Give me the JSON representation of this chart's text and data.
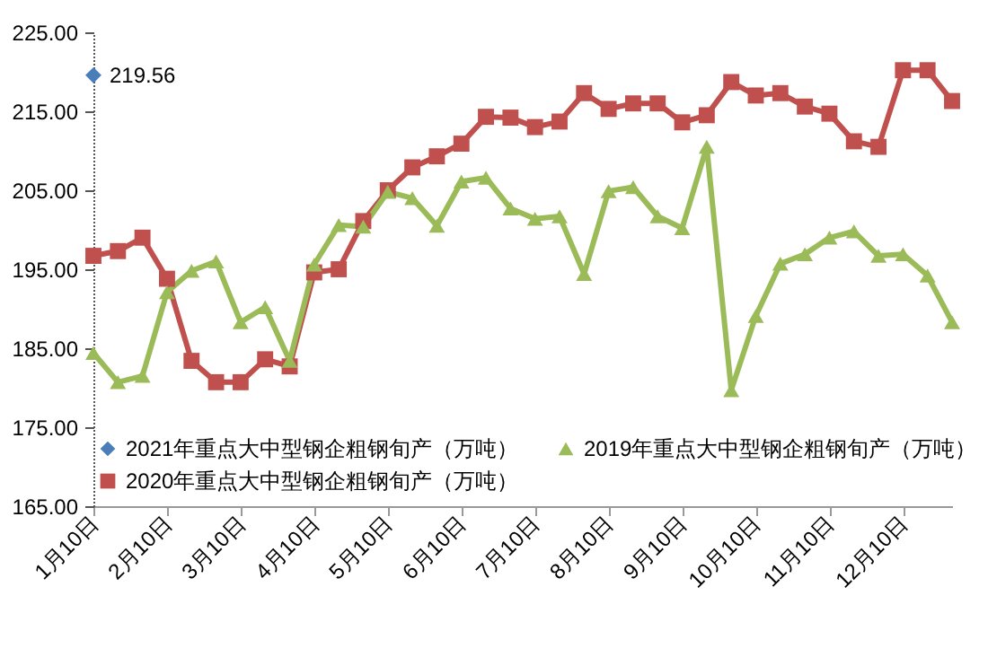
{
  "chart_data": {
    "type": "line",
    "categories": [
      "1月10日",
      null,
      null,
      "2月10日",
      null,
      null,
      "3月10日",
      null,
      null,
      "4月10日",
      null,
      null,
      "5月10日",
      null,
      null,
      "6月10日",
      null,
      null,
      "7月10日",
      null,
      null,
      "8月10日",
      null,
      null,
      "9月10日",
      null,
      null,
      "10月10日",
      null,
      null,
      "11月10日",
      null,
      null,
      "12月10日",
      null,
      null
    ],
    "series": [
      {
        "name": "2021年重点大中型钢企粗钢旬产（万吨）",
        "color": "#4a7ebb",
        "marker": "diamond",
        "values": [
          219.56,
          null,
          null,
          null,
          null,
          null,
          null,
          null,
          null,
          null,
          null,
          null,
          null,
          null,
          null,
          null,
          null,
          null,
          null,
          null,
          null,
          null,
          null,
          null,
          null,
          null,
          null,
          null,
          null,
          null,
          null,
          null,
          null,
          null,
          null,
          null
        ],
        "value_labels": [
          "219.56",
          null,
          null,
          null,
          null,
          null,
          null,
          null,
          null,
          null,
          null,
          null,
          null,
          null,
          null,
          null,
          null,
          null,
          null,
          null,
          null,
          null,
          null,
          null,
          null,
          null,
          null,
          null,
          null,
          null,
          null,
          null,
          null,
          null,
          null,
          null
        ]
      },
      {
        "name": "2020年重点大中型钢企粗钢旬产（万吨）",
        "color": "#c0504d",
        "marker": "square",
        "values": [
          196.7,
          197.3,
          199.0,
          193.8,
          183.4,
          180.7,
          180.7,
          183.6,
          182.7,
          194.6,
          195.0,
          201.1,
          205.0,
          207.9,
          209.3,
          210.9,
          214.3,
          214.2,
          213.0,
          213.7,
          217.3,
          215.3,
          216.0,
          216.0,
          213.6,
          214.5,
          218.7,
          217.0,
          217.3,
          215.6,
          214.7,
          211.2,
          210.5,
          220.2,
          220.2,
          216.3
        ]
      },
      {
        "name": "2019年重点大中型钢企粗钢旬产（万吨）",
        "color": "#9bbb59",
        "marker": "triangle",
        "values": [
          184.4,
          180.7,
          181.5,
          192.1,
          194.8,
          196.0,
          188.3,
          190.2,
          183.4,
          195.6,
          200.6,
          200.4,
          204.8,
          204.0,
          200.5,
          206.1,
          206.6,
          202.7,
          201.4,
          201.7,
          194.4,
          204.9,
          205.4,
          201.7,
          200.2,
          210.5,
          179.7,
          189.1,
          195.7,
          196.9,
          199.0,
          199.8,
          196.7,
          196.9,
          194.2,
          188.3
        ]
      }
    ],
    "ylim": [
      165,
      225
    ],
    "yticks": [
      {
        "value": 165,
        "label": "165.00"
      },
      {
        "value": 175,
        "label": "175.00"
      },
      {
        "value": 185,
        "label": "185.00"
      },
      {
        "value": 195,
        "label": "195.00"
      },
      {
        "value": 205,
        "label": "205.00"
      },
      {
        "value": 215,
        "label": "215.00"
      },
      {
        "value": 225,
        "label": "225.00"
      }
    ],
    "legend": "bottom"
  }
}
